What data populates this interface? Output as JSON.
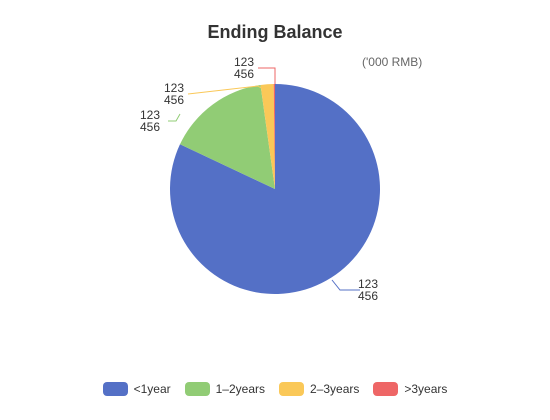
{
  "chart_data": {
    "type": "pie",
    "title": "Ending Balance",
    "unit": "('000 RMB)",
    "slices": [
      {
        "name": "<1year",
        "value": 82,
        "label": [
          "123",
          "456"
        ],
        "color": "#5470c6"
      },
      {
        "name": "1–2years",
        "value": 15.8,
        "label": [
          "123",
          "456"
        ],
        "color": "#91cc75"
      },
      {
        "name": "2–3years",
        "value": 2,
        "label": [
          "123",
          "456"
        ],
        "color": "#fac858"
      },
      {
        "name": ">3years",
        "value": 0.2,
        "label": [
          "123",
          "456"
        ],
        "color": "#ee6666"
      }
    ],
    "legend_position": "bottom"
  }
}
